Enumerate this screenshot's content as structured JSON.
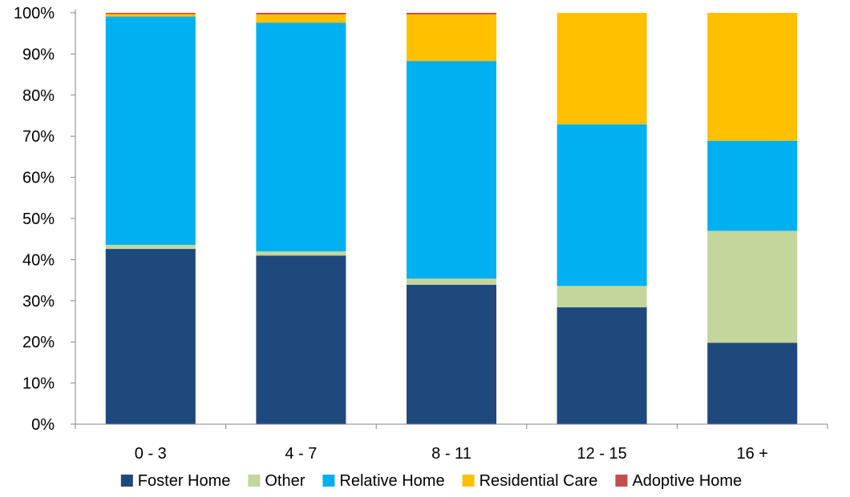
{
  "chart_data": {
    "type": "bar",
    "stacked": true,
    "percent_scale": true,
    "categories": [
      "0 - 3",
      "4 - 7",
      "8 - 11",
      "12 - 15",
      "16 +"
    ],
    "series": [
      {
        "name": "Foster Home",
        "color": "#1F497D",
        "values": [
          42.6,
          41.0,
          33.9,
          28.4,
          19.8
        ]
      },
      {
        "name": "Other",
        "color": "#C3D69B",
        "values": [
          1.0,
          1.0,
          1.5,
          5.2,
          27.2
        ]
      },
      {
        "name": "Relative Home",
        "color": "#00B0F0",
        "values": [
          55.5,
          55.6,
          52.9,
          39.3,
          21.9
        ]
      },
      {
        "name": "Residential Care",
        "color": "#FFC000",
        "values": [
          0.6,
          2.0,
          11.3,
          27.1,
          31.1
        ]
      },
      {
        "name": "Adoptive Home",
        "color": "#C0504D",
        "values": [
          0.3,
          0.4,
          0.4,
          0.0,
          0.0
        ]
      }
    ],
    "ylim": [
      0,
      100
    ],
    "yticks": [
      "0%",
      "10%",
      "20%",
      "30%",
      "40%",
      "50%",
      "60%",
      "70%",
      "80%",
      "90%",
      "100%"
    ],
    "grid": false,
    "legend_position": "bottom",
    "title": "",
    "xlabel": "",
    "ylabel": ""
  }
}
